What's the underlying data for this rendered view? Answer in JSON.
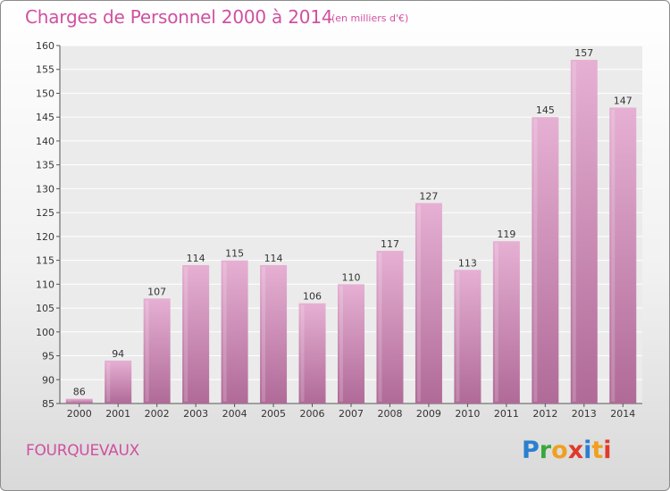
{
  "chart_data": {
    "type": "bar",
    "title": "Charges de Personnel 2000 à 2014",
    "subtitle": "(en milliers d'€)",
    "categories": [
      "2000",
      "2001",
      "2002",
      "2003",
      "2004",
      "2005",
      "2006",
      "2007",
      "2008",
      "2009",
      "2010",
      "2011",
      "2012",
      "2013",
      "2014"
    ],
    "values": [
      86,
      94,
      107,
      114,
      115,
      114,
      106,
      110,
      117,
      127,
      113,
      119,
      145,
      157,
      147
    ],
    "data_labels": [
      "86",
      "94",
      "107",
      "114",
      "115",
      "114",
      "106",
      "110",
      "117",
      "127",
      "113",
      "119",
      "145",
      "157",
      "147"
    ],
    "ylim": [
      85,
      160
    ],
    "yticks": [
      "85",
      "90",
      "95",
      "100",
      "105",
      "110",
      "115",
      "120",
      "125",
      "130",
      "135",
      "140",
      "145",
      "150",
      "155",
      "160"
    ],
    "grid": true,
    "bar_color_top": "#e6b0d3",
    "bar_color_bottom": "#b06a98"
  },
  "footer": {
    "city": "FOURQUEVAUX",
    "logo_letters": [
      "P",
      "r",
      "o",
      "x",
      "i",
      "t",
      "i"
    ]
  }
}
